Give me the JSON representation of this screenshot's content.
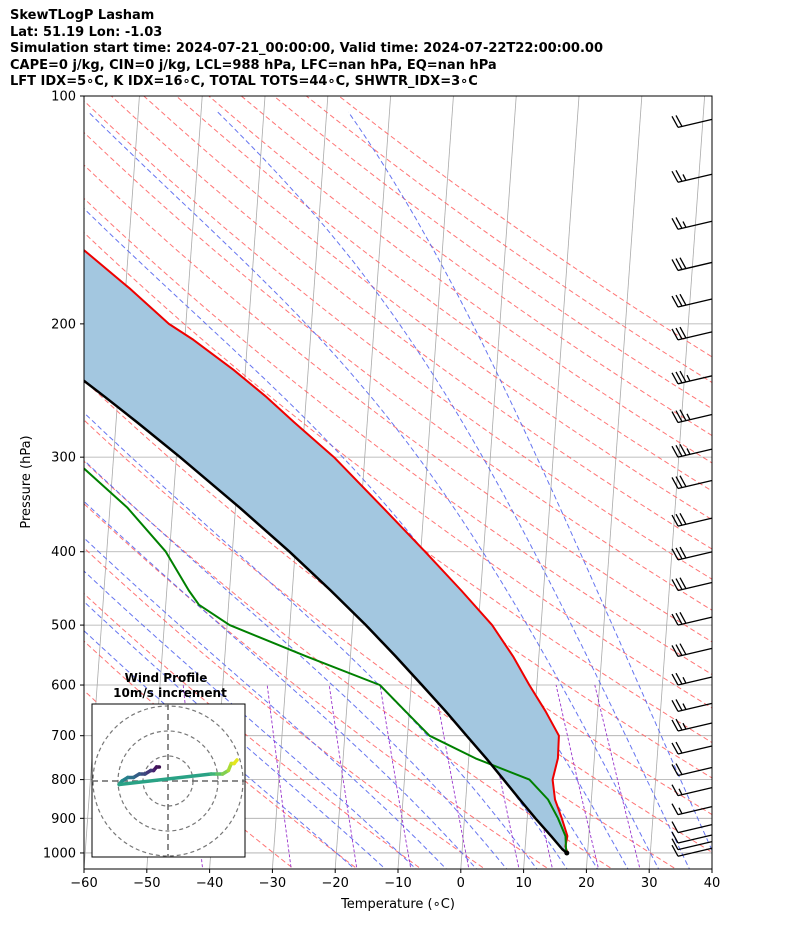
{
  "header": {
    "line1": "SkewTLogP Lasham",
    "line2": "Lat: 51.19   Lon: -1.03",
    "line3": "Simulation start time: 2024-07-21_00:00:00, Valid time: 2024-07-22T22:00:00.00",
    "line4": "CAPE=0 j/kg, CIN=0 j/kg, LCL=988 hPa, LFC=nan hPa, EQ=nan hPa",
    "line5": "LFT IDX=5∘C, K IDX=16∘C, TOTAL TOTS=44∘C, SHWTR_IDX=3∘C"
  },
  "colors": {
    "temperature": "#ee0000",
    "dewpoint": "#008000",
    "parcel": "#000000",
    "cape_fill": "#a3c7e0",
    "dry_adiabat": "#ff6666",
    "moist_adiabat": "#5566ee",
    "mixing_ratio": "#9933cc",
    "isotherm": "#aaaaaa"
  },
  "chart_data": {
    "type": "line",
    "title": "",
    "xlabel": "Temperature (∘C)",
    "ylabel": "Pressure (hPa)",
    "xlim": [
      -60,
      40
    ],
    "ylim": [
      1050,
      100
    ],
    "yscale": "log",
    "x_ticks": [
      "−60",
      "−50",
      "−40",
      "−30",
      "−20",
      "−10",
      "0",
      "10",
      "20",
      "30",
      "40"
    ],
    "y_ticks": [
      "1000",
      "900",
      "800",
      "700",
      "600",
      "500",
      "400",
      "300",
      "200",
      "100"
    ],
    "grid": true,
    "series": [
      {
        "key": "temperature",
        "pressure": [
          1000,
          980,
          950,
          900,
          850,
          800,
          750,
          700,
          650,
          600,
          550,
          500,
          450,
          400,
          350,
          300,
          270,
          250,
          230,
          210,
          200,
          180,
          160,
          140,
          130,
          120,
          110,
          100
        ],
        "values": [
          16.8,
          16.4,
          16.6,
          15.5,
          14.2,
          13.6,
          14.2,
          14.1,
          11.7,
          8.8,
          5.9,
          2.2,
          -3.1,
          -9.3,
          -16.5,
          -24.9,
          -31.6,
          -36.3,
          -41.9,
          -48.6,
          -52.7,
          -59.2,
          -67.0,
          -77.0,
          -82.2,
          -87.9,
          -94.6,
          -102.5
        ]
      },
      {
        "key": "dewpoint",
        "pressure": [
          1000,
          950,
          900,
          850,
          800,
          750,
          700,
          650,
          600,
          550,
          500,
          470,
          450,
          400,
          350,
          300,
          270,
          250,
          230,
          200,
          190,
          180,
          160,
          150,
          140,
          130,
          100
        ],
        "values": [
          16.6,
          16.3,
          14.9,
          13.1,
          9.9,
          1.1,
          -6.5,
          -10.6,
          -15.0,
          -27.0,
          -39.6,
          -44.7,
          -46.5,
          -50.6,
          -57.2,
          -66.7,
          -73.3,
          -78.1,
          -83.2,
          -91.8,
          -95.8,
          -100.4,
          -106.2,
          -111.8,
          -119.0,
          -124.2,
          -143.0
        ]
      },
      {
        "key": "parcel",
        "pressure": [
          1000,
          988,
          950,
          900,
          850,
          800,
          750,
          700,
          650,
          600,
          550,
          500,
          450,
          400,
          350,
          300,
          270,
          250,
          230,
          200,
          180,
          160,
          140,
          120,
          100
        ],
        "values": [
          16.7,
          15.9,
          14.0,
          11.3,
          8.6,
          5.8,
          2.8,
          -0.6,
          -4.2,
          -8.3,
          -12.8,
          -17.9,
          -23.9,
          -30.9,
          -39.3,
          -49.4,
          -56.6,
          -62.0,
          -68.0,
          -78.3,
          -86.4,
          -95.5,
          -106.0,
          -118.4,
          -132.9
        ]
      }
    ],
    "wind_barbs": {
      "pressure": [
        1010,
        990,
        970,
        940,
        890,
        840,
        790,
        740,
        690,
        650,
        600,
        550,
        500,
        450,
        410,
        370,
        330,
        300,
        270,
        240,
        210,
        190,
        170,
        150,
        130,
        110
      ],
      "speed_kt": [
        10,
        10,
        10,
        10,
        15,
        15,
        20,
        20,
        25,
        25,
        25,
        30,
        30,
        30,
        30,
        30,
        30,
        35,
        35,
        35,
        30,
        30,
        30,
        25,
        25,
        20
      ]
    },
    "hodograph": {
      "title_line1": "Wind Profile",
      "title_line2": "10m/s increment",
      "rings_ms": [
        10,
        20,
        30
      ],
      "u": [
        -3,
        -4,
        -5,
        -6,
        -8,
        -10,
        -12,
        -14,
        -16,
        -17,
        15,
        17,
        19,
        21,
        22,
        23,
        24
      ],
      "v": [
        4,
        4,
        3,
        3,
        2,
        2,
        1,
        1,
        0,
        -1,
        2,
        2,
        2,
        3,
        5,
        5,
        6
      ]
    }
  }
}
